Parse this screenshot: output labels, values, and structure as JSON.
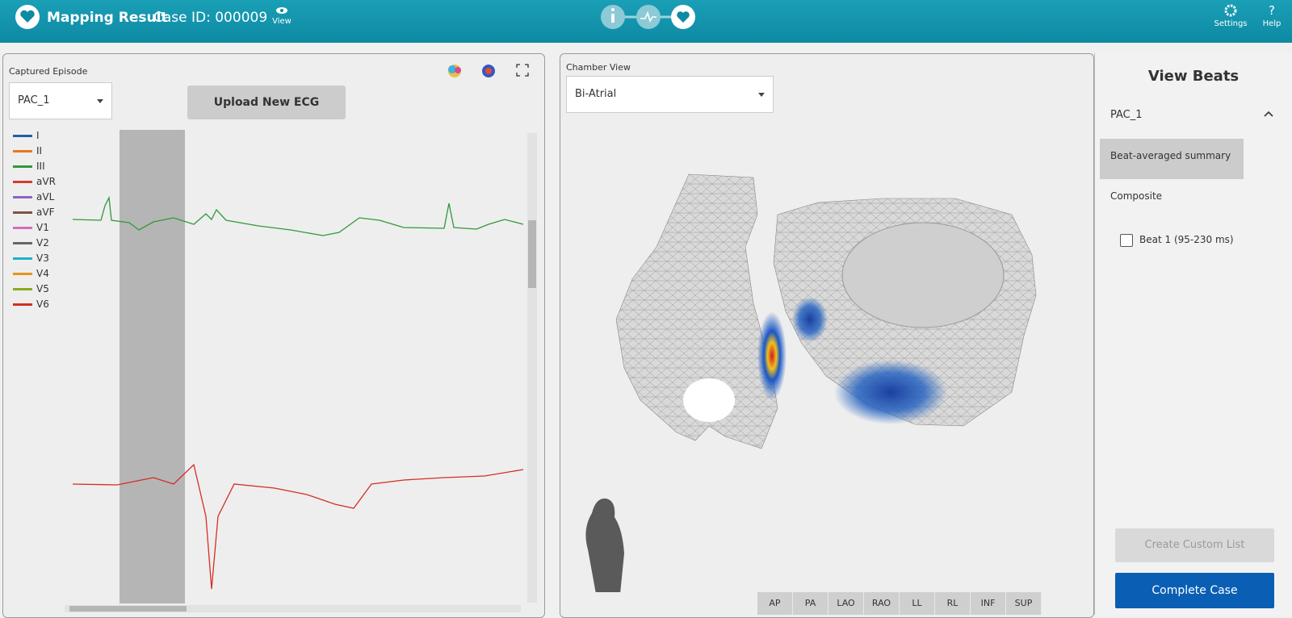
{
  "header": {
    "title": "Mapping Result",
    "case_id": "Case ID: 000009",
    "view": "View",
    "settings": "Settings",
    "help": "Help"
  },
  "episode_panel": {
    "label": "Captured Episode",
    "selected": "PAC_1",
    "upload_button": "Upload New ECG",
    "leads": [
      {
        "name": "I",
        "color": "#1f5fa8"
      },
      {
        "name": "II",
        "color": "#e8781e"
      },
      {
        "name": "III",
        "color": "#2e9a3a"
      },
      {
        "name": "aVR",
        "color": "#d43c34"
      },
      {
        "name": "aVL",
        "color": "#8e63c0"
      },
      {
        "name": "aVF",
        "color": "#7f5540"
      },
      {
        "name": "V1",
        "color": "#d46fb8"
      },
      {
        "name": "V2",
        "color": "#666666"
      },
      {
        "name": "V3",
        "color": "#1fb0c8"
      },
      {
        "name": "V4",
        "color": "#e8941e"
      },
      {
        "name": "V5",
        "color": "#8aaa1e"
      },
      {
        "name": "V6",
        "color": "#d42e24"
      }
    ]
  },
  "chamber_panel": {
    "label": "Chamber View",
    "selected": "Bi-Atrial",
    "views": [
      "AP",
      "PA",
      "LAO",
      "RAO",
      "LL",
      "RL",
      "INF",
      "SUP"
    ]
  },
  "beats_panel": {
    "title": "View Beats",
    "episode": "PAC_1",
    "items": [
      "Beat-averaged summary",
      "Composite"
    ],
    "beat": "Beat 1 (95-230 ms)",
    "create_button": "Create Custom List",
    "complete_button": "Complete Case"
  }
}
